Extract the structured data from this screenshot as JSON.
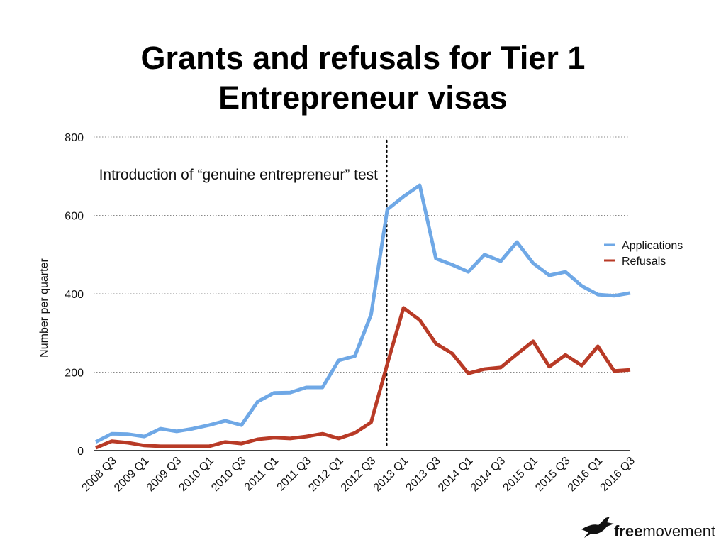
{
  "chart_data": {
    "type": "line",
    "title": "Grants and refusals for Tier 1 Entrepreneur visas",
    "y_label": "Number per quarter",
    "categories": [
      "2008 Q3",
      null,
      "2009 Q1",
      null,
      "2009 Q3",
      null,
      "2010 Q1",
      null,
      "2010 Q3",
      null,
      "2011 Q1",
      null,
      "2011 Q3",
      null,
      "2012 Q1",
      null,
      "2012 Q3",
      null,
      "2013 Q1",
      null,
      "2013 Q3",
      null,
      "2014 Q1",
      null,
      "2014 Q3",
      null,
      "2015 Q1",
      null,
      "2015 Q3",
      null,
      "2016 Q1",
      null,
      "2016 Q3",
      null
    ],
    "series": [
      {
        "name": "Applications",
        "color": "#6fa8e6",
        "values": [
          22,
          43,
          42,
          36,
          56,
          49,
          56,
          65,
          76,
          65,
          125,
          147,
          148,
          161,
          161,
          230,
          241,
          347,
          615,
          648,
          677,
          490,
          474,
          456,
          500,
          483,
          532,
          478,
          447,
          456,
          420,
          398,
          395,
          402
        ]
      },
      {
        "name": "Refusals",
        "color": "#b83a26",
        "values": [
          7,
          24,
          20,
          13,
          11,
          11,
          11,
          11,
          22,
          18,
          29,
          33,
          31,
          36,
          43,
          31,
          45,
          72,
          221,
          364,
          333,
          273,
          248,
          197,
          208,
          212,
          246,
          279,
          214,
          244,
          217,
          266,
          203,
          206
        ]
      }
    ],
    "ylim": [
      0,
      800
    ],
    "yticks": [
      0,
      200,
      400,
      600,
      800
    ],
    "grid": true,
    "legend": "right",
    "annotation": {
      "text": "Introduction of “genuine entrepreneur” test",
      "at": "2013 Q1"
    },
    "logo": {
      "bold": "free",
      "rest": "movement"
    }
  }
}
